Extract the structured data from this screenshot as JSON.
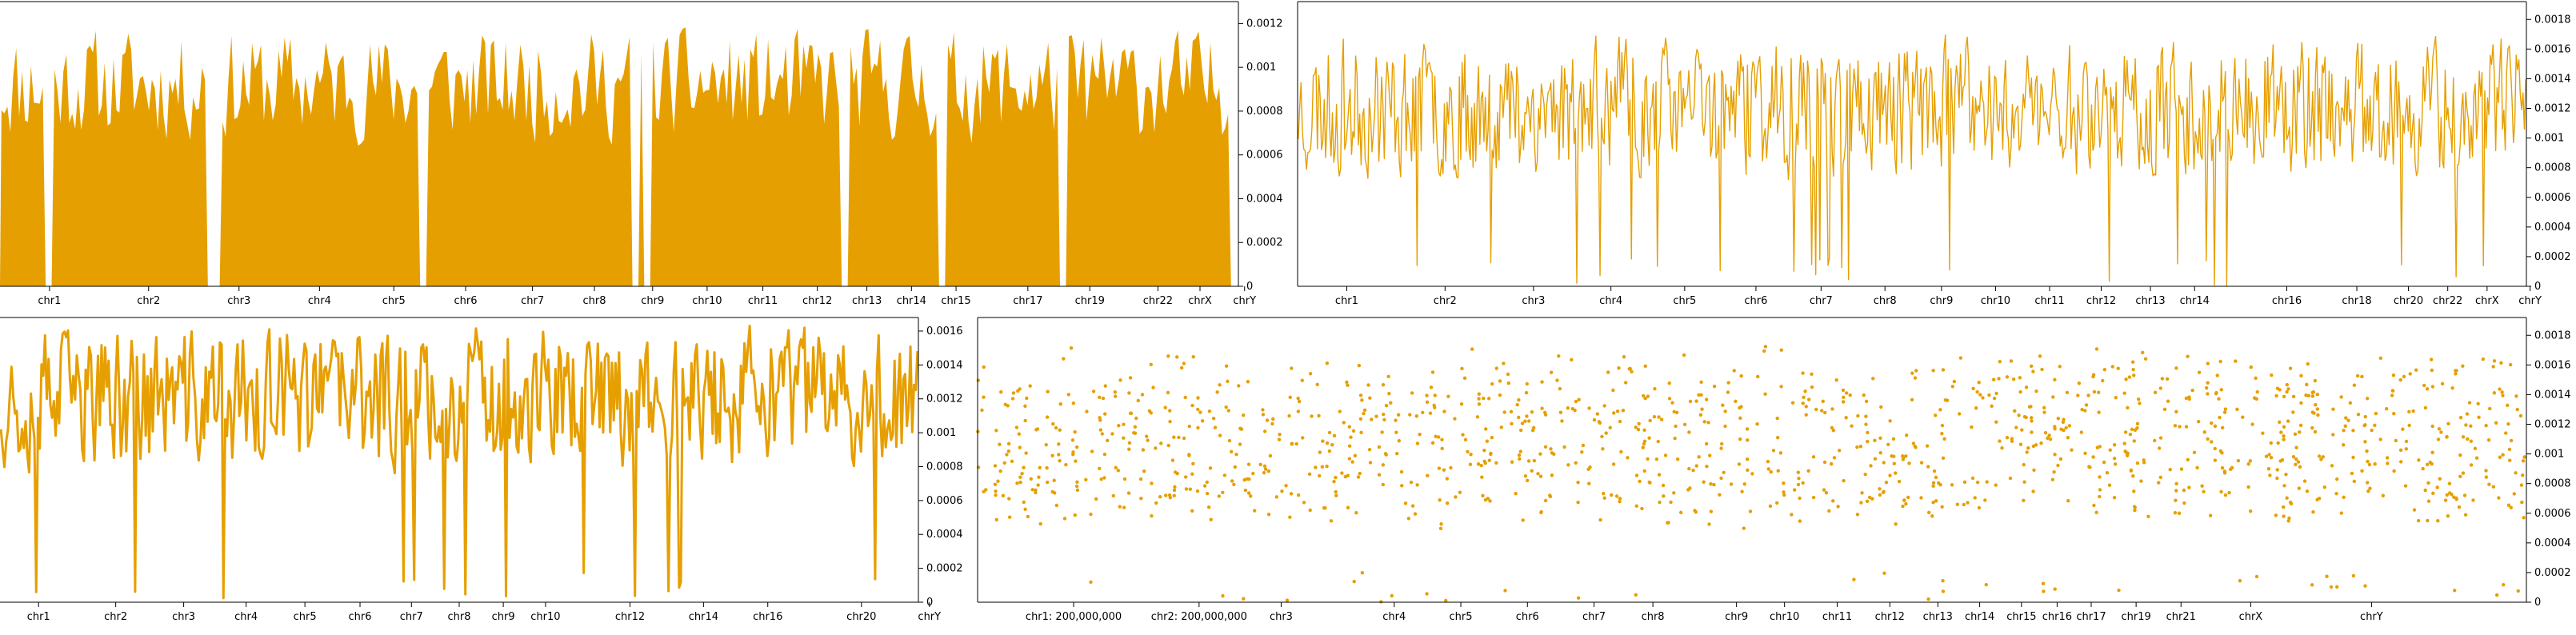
{
  "colors": {
    "series": "#E69F00",
    "axis": "#000000",
    "background": "#ffffff"
  },
  "chart_data": [
    {
      "type": "area",
      "id": "top-left",
      "ylim": [
        0,
        0.0013
      ],
      "yticks": [
        "0",
        "0.0002",
        "0.0004",
        "0.0006",
        "0.0008",
        "0.001",
        "0.0012"
      ],
      "ytick_values": [
        0,
        0.0002,
        0.0004,
        0.0006,
        0.0008,
        0.001,
        0.0012
      ],
      "xlim": [
        0,
        100
      ],
      "xticks": [
        {
          "label": "chr1",
          "x": 4.0
        },
        {
          "label": "chr2",
          "x": 12.0
        },
        {
          "label": "chr3",
          "x": 19.3
        },
        {
          "label": "chr4",
          "x": 25.8
        },
        {
          "label": "chr5",
          "x": 31.8
        },
        {
          "label": "chr6",
          "x": 37.6
        },
        {
          "label": "chr7",
          "x": 43.0
        },
        {
          "label": "chr8",
          "x": 48.0
        },
        {
          "label": "chr9",
          "x": 52.7
        },
        {
          "label": "chr10",
          "x": 57.1
        },
        {
          "label": "chr11",
          "x": 61.6
        },
        {
          "label": "chr12",
          "x": 66.0
        },
        {
          "label": "chr13",
          "x": 70.0
        },
        {
          "label": "chr14",
          "x": 73.6
        },
        {
          "label": "chr15",
          "x": 77.2
        },
        {
          "label": "chr17",
          "x": 83.0
        },
        {
          "label": "chr19",
          "x": 88.0
        },
        {
          "label": "chr22",
          "x": 93.5
        },
        {
          "label": "chrX",
          "x": 96.9
        },
        {
          "label": "chrY",
          "x": 100.5
        }
      ],
      "boundaries": [
        3.9,
        16.9,
        17.4,
        34.1,
        51.3,
        52.1,
        68.1,
        75.9,
        85.8,
        99.5
      ],
      "seed": 11,
      "n": 420,
      "base": 0.00092,
      "amp": 0.00025
    },
    {
      "type": "line",
      "id": "top-right",
      "ylim": [
        0,
        0.00192
      ],
      "yticks": [
        "0",
        "0.0002",
        "0.0004",
        "0.0006",
        "0.0008",
        "0.001",
        "0.0012",
        "0.0014",
        "0.0016",
        "0.0018"
      ],
      "ytick_values": [
        0,
        0.0002,
        0.0004,
        0.0006,
        0.0008,
        0.001,
        0.0012,
        0.0014,
        0.0016,
        0.0018
      ],
      "xlim": [
        0,
        100
      ],
      "xticks": [
        {
          "label": "chr1",
          "x": 4.0
        },
        {
          "label": "chr2",
          "x": 12.0
        },
        {
          "label": "chr3",
          "x": 19.2
        },
        {
          "label": "chr4",
          "x": 25.5
        },
        {
          "label": "chr5",
          "x": 31.5
        },
        {
          "label": "chr6",
          "x": 37.3
        },
        {
          "label": "chr7",
          "x": 42.6
        },
        {
          "label": "chr8",
          "x": 47.8
        },
        {
          "label": "chr9",
          "x": 52.4
        },
        {
          "label": "chr10",
          "x": 56.8
        },
        {
          "label": "chr11",
          "x": 61.2
        },
        {
          "label": "chr12",
          "x": 65.4
        },
        {
          "label": "chr13",
          "x": 69.4
        },
        {
          "label": "chr14",
          "x": 73.0
        },
        {
          "label": "chr16",
          "x": 80.5
        },
        {
          "label": "chr18",
          "x": 86.2
        },
        {
          "label": "chr20",
          "x": 90.4
        },
        {
          "label": "chr22",
          "x": 93.6
        },
        {
          "label": "chrX",
          "x": 96.8
        },
        {
          "label": "chrY",
          "x": 100.3
        }
      ],
      "seed": 23,
      "n": 900,
      "base": 0.0012,
      "amp": 0.00045,
      "dropRate": 0.02
    },
    {
      "type": "line",
      "id": "bottom-left",
      "ylim": [
        0,
        0.00168
      ],
      "yticks": [
        "0",
        "0.0002",
        "0.0004",
        "0.0006",
        "0.0008",
        "0.001",
        "0.0012",
        "0.0014",
        "0.0016"
      ],
      "ytick_values": [
        0,
        0.0002,
        0.0004,
        0.0006,
        0.0008,
        0.001,
        0.0012,
        0.0014,
        0.0016
      ],
      "xlim": [
        0,
        100
      ],
      "xticks": [
        {
          "label": "chr1",
          "x": 4.2
        },
        {
          "label": "chr2",
          "x": 12.6
        },
        {
          "label": "chr3",
          "x": 20.0
        },
        {
          "label": "chr4",
          "x": 26.8
        },
        {
          "label": "chr5",
          "x": 33.2
        },
        {
          "label": "chr6",
          "x": 39.2
        },
        {
          "label": "chr7",
          "x": 44.8
        },
        {
          "label": "chr8",
          "x": 50.0
        },
        {
          "label": "chr9",
          "x": 54.8
        },
        {
          "label": "chr10",
          "x": 59.4
        },
        {
          "label": "chr12",
          "x": 68.6
        },
        {
          "label": "chr14",
          "x": 76.6
        },
        {
          "label": "chr16",
          "x": 83.6
        },
        {
          "label": "chr20",
          "x": 93.8
        },
        {
          "label": "chrY",
          "x": 101.2
        }
      ],
      "seed": 37,
      "n": 520,
      "base": 0.0012,
      "amp": 0.0004,
      "dropRate": 0.03,
      "stroke": 3
    },
    {
      "type": "scatter",
      "id": "bottom-right",
      "ylim": [
        0,
        0.00192
      ],
      "yticks": [
        "0",
        "0.0002",
        "0.0004",
        "0.0006",
        "0.0008",
        "0.001",
        "0.0012",
        "0.0014",
        "0.0016",
        "0.0018"
      ],
      "ytick_values": [
        0,
        0.0002,
        0.0004,
        0.0006,
        0.0008,
        0.001,
        0.0012,
        0.0014,
        0.0016,
        0.0018
      ],
      "xlim": [
        0,
        100
      ],
      "xticks": [
        {
          "label": "chr1: 200,000,000",
          "x": 6.2
        },
        {
          "label": "chr2: 200,000,000",
          "x": 14.3
        },
        {
          "label": "chr3",
          "x": 19.6
        },
        {
          "label": "chr4",
          "x": 26.9
        },
        {
          "label": "chr5",
          "x": 31.2
        },
        {
          "label": "chr6",
          "x": 35.5
        },
        {
          "label": "chr7",
          "x": 39.8
        },
        {
          "label": "chr8",
          "x": 43.6
        },
        {
          "label": "chr9",
          "x": 49.0
        },
        {
          "label": "chr10",
          "x": 52.1
        },
        {
          "label": "chr11",
          "x": 55.5
        },
        {
          "label": "chr12",
          "x": 58.9
        },
        {
          "label": "chr13",
          "x": 62.0
        },
        {
          "label": "chr14",
          "x": 64.7
        },
        {
          "label": "chr15",
          "x": 67.4
        },
        {
          "label": "chr16",
          "x": 69.7
        },
        {
          "label": "chr17",
          "x": 71.9
        },
        {
          "label": "chr19",
          "x": 74.8
        },
        {
          "label": "chr21",
          "x": 77.7
        },
        {
          "label": "chrX",
          "x": 82.2
        },
        {
          "label": "chrY",
          "x": 90.0
        }
      ],
      "seed": 53,
      "n": 1300,
      "base": 0.0011,
      "amp": 0.00055,
      "dropRate": 0.03
    }
  ]
}
